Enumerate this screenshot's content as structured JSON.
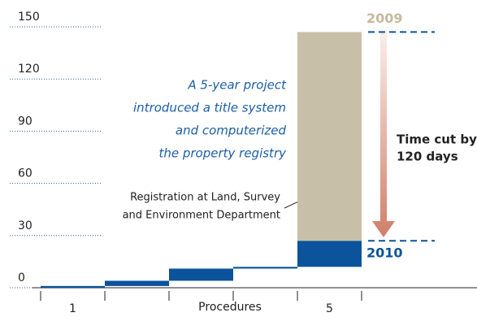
{
  "chart_data": {
    "type": "waterfall",
    "categories": [
      "1",
      null,
      null,
      null,
      "5"
    ],
    "series": [
      {
        "name": "2010",
        "color": "#0b539a",
        "values": [
          1,
          3,
          7,
          1,
          15
        ]
      },
      {
        "name": "2009",
        "color": "#c8bfa9",
        "values": [
          null,
          null,
          null,
          null,
          120
        ]
      }
    ],
    "ylim": [
      0,
      150
    ],
    "yticks": [
      0,
      30,
      60,
      90,
      120,
      150
    ],
    "x_label": "Procedures",
    "annotations": {
      "project": [
        "A 5-year project",
        "introduced a title system",
        "and computerized",
        "the property registry"
      ],
      "registration": [
        "Registration at Land, Survey",
        "and Environment Department"
      ],
      "time_cut": [
        "Time cut by",
        "120 days"
      ]
    }
  }
}
